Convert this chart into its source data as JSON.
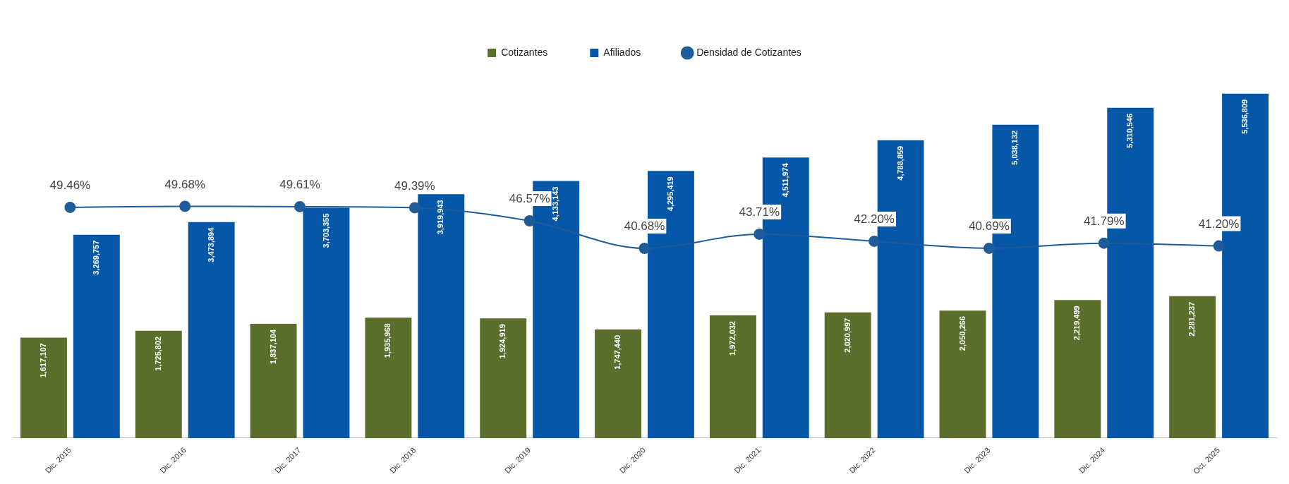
{
  "chart_data": {
    "type": "bar",
    "categories": [
      "Dic. 2015",
      "Dic. 2016",
      "Dic. 2017",
      "Dic. 2018",
      "Dic. 2019",
      "Dic. 2020",
      "Dic. 2021",
      "Dic. 2022",
      "Dic. 2023",
      "Dic. 2024",
      "Oct. 2025"
    ],
    "series": [
      {
        "name": "Cotizantes",
        "color": "#5b6e2c",
        "values": [
          1617107,
          1725802,
          1837104,
          1935968,
          1924919,
          1747440,
          1972032,
          2020997,
          2050266,
          2219499,
          2281237
        ],
        "value_labels": [
          "1,617,107",
          "1,725,802",
          "1,837,104",
          "1,935,968",
          "1,924,919",
          "1,747,440",
          "1,972,032",
          "2,020,997",
          "2,050,266",
          "2,219,499",
          "2,281,237"
        ]
      },
      {
        "name": "Afiliados",
        "color": "#0757a8",
        "values": [
          3269757,
          3473894,
          3703355,
          3919943,
          4133143,
          4295419,
          4511974,
          4788859,
          5038132,
          5310546,
          5536809
        ],
        "value_labels": [
          "3,269,757",
          "3,473,894",
          "3,703,355",
          "3,919,943",
          "4,133,143",
          "4,295,419",
          "4,511,974",
          "4,788,859",
          "5,038,132",
          "5,310,546",
          "5,536,809"
        ]
      },
      {
        "name": "Densidad de Cotizantes",
        "type": "line",
        "axis": "y2",
        "color": "#1f5c99",
        "values": [
          49.46,
          49.68,
          49.61,
          49.39,
          46.57,
          40.68,
          43.71,
          42.2,
          40.69,
          41.79,
          41.2
        ],
        "value_labels": [
          "49.46%",
          "49.68%",
          "49.61%",
          "49.39%",
          "46.57%",
          "40.68%",
          "43.71%",
          "42.20%",
          "40.69%",
          "41.79%",
          "41.20%"
        ]
      }
    ],
    "tick_labels": "x",
    "grid": false,
    "legend": "top",
    "marker": "circle",
    "line_style": "solid"
  }
}
